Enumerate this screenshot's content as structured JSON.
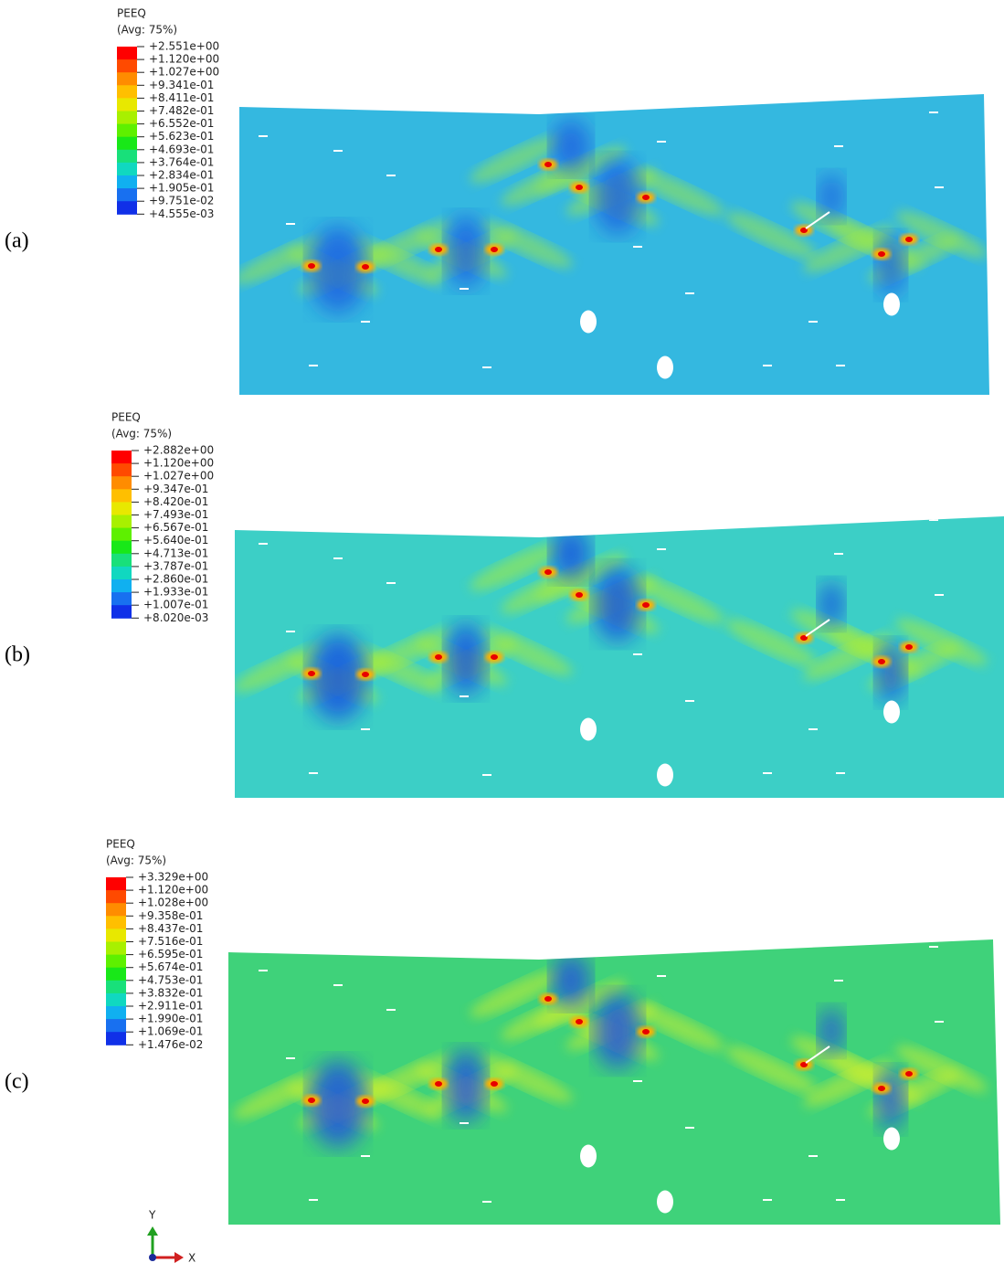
{
  "panels": [
    {
      "label": "(a)",
      "legend": {
        "title": "PEEQ",
        "subtitle": "(Avg: 75%)",
        "values": [
          "+2.551e+00",
          "+1.120e+00",
          "+1.027e+00",
          "+9.341e-01",
          "+8.411e-01",
          "+7.482e-01",
          "+6.552e-01",
          "+5.623e-01",
          "+4.693e-01",
          "+3.764e-01",
          "+2.834e-01",
          "+1.905e-01",
          "+9.751e-02",
          "+4.555e-03"
        ]
      }
    },
    {
      "label": "(b)",
      "legend": {
        "title": "PEEQ",
        "subtitle": "(Avg: 75%)",
        "values": [
          "+2.882e+00",
          "+1.120e+00",
          "+1.027e+00",
          "+9.347e-01",
          "+8.420e-01",
          "+7.493e-01",
          "+6.567e-01",
          "+5.640e-01",
          "+4.713e-01",
          "+3.787e-01",
          "+2.860e-01",
          "+1.933e-01",
          "+1.007e-01",
          "+8.020e-03"
        ]
      }
    },
    {
      "label": "(c)",
      "legend": {
        "title": "PEEQ",
        "subtitle": "(Avg: 75%)",
        "values": [
          "+3.329e+00",
          "+1.120e+00",
          "+1.028e+00",
          "+9.358e-01",
          "+8.437e-01",
          "+7.516e-01",
          "+6.595e-01",
          "+5.674e-01",
          "+4.753e-01",
          "+3.832e-01",
          "+2.911e-01",
          "+1.990e-01",
          "+1.069e-01",
          "+1.476e-02"
        ]
      }
    }
  ],
  "triad": {
    "y": "Y",
    "x": "X"
  }
}
